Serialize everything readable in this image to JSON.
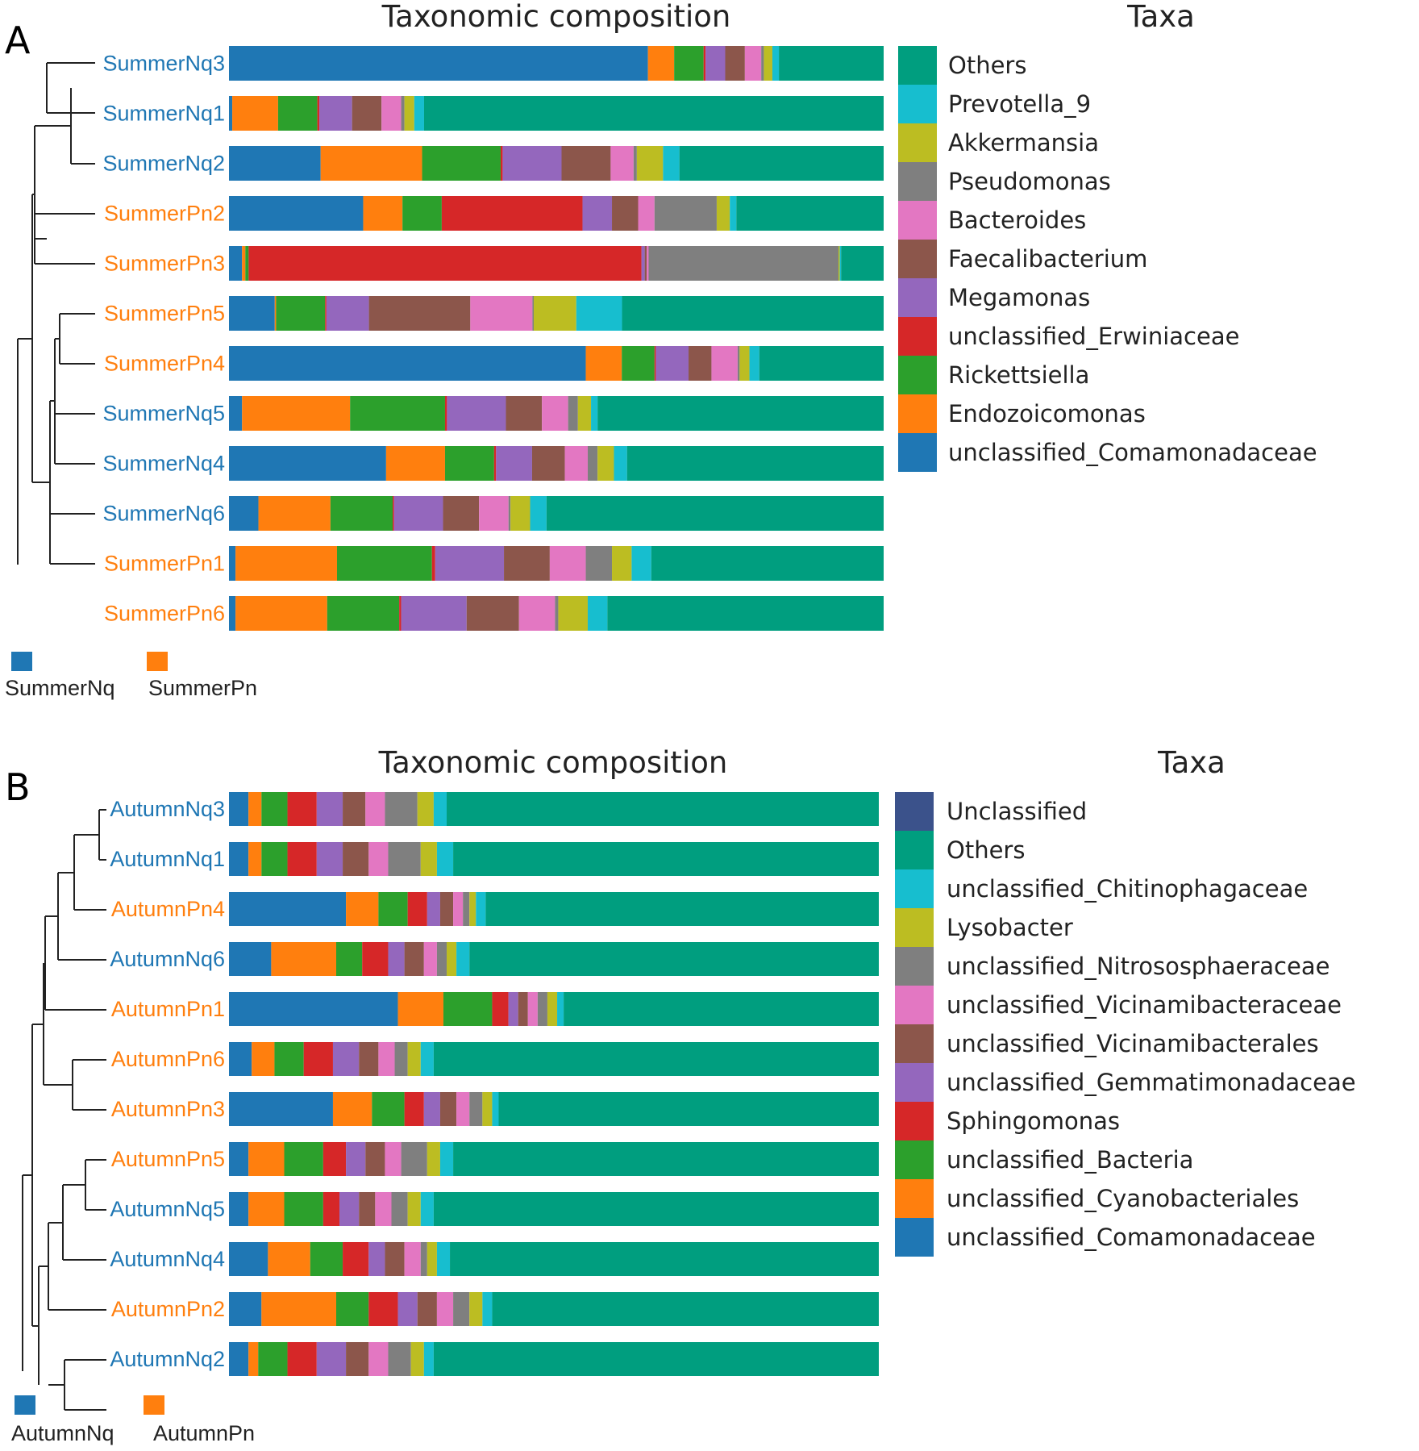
{
  "colors": {
    "Nq": "#1f77b4",
    "Pn": "#ff7f0e",
    "blue": "#1f77b4",
    "orange": "#ff7f0e",
    "green": "#2ca02c",
    "red": "#d62728",
    "purple": "#9467bd",
    "brown": "#8c564b",
    "pink": "#e377c2",
    "gray": "#7f7f7f",
    "olive": "#bcbd22",
    "cyan": "#17becf",
    "teal": "#009e7f",
    "navy": "#3b528b"
  },
  "chart_data": [
    {
      "panel": "A",
      "type": "bar",
      "orientation": "horizontal-stacked",
      "title": "Taxonomic composition",
      "legend_title": "Taxa",
      "xlim": [
        0,
        100
      ],
      "legend": [
        "Others",
        "Prevotella_9",
        "Akkermansia",
        "Pseudomonas",
        "Bacteroides",
        "Faecalibacterium",
        "Megamonas",
        "unclassified_Erwiniaceae",
        "Rickettsiella",
        "Endozoicomonas",
        "unclassified_Comamonadaceae"
      ],
      "legend_colors": [
        "teal",
        "cyan",
        "olive",
        "gray",
        "pink",
        "brown",
        "purple",
        "red",
        "green",
        "orange",
        "blue"
      ],
      "stack_order": [
        "unclassified_Comamonadaceae",
        "Endozoicomonas",
        "Rickettsiella",
        "unclassified_Erwiniaceae",
        "Megamonas",
        "Faecalibacterium",
        "Bacteroides",
        "Pseudomonas",
        "Akkermansia",
        "Prevotella_9",
        "Others"
      ],
      "stack_colors": [
        "blue",
        "orange",
        "green",
        "red",
        "purple",
        "brown",
        "pink",
        "gray",
        "olive",
        "cyan",
        "teal"
      ],
      "samples": [
        {
          "name": "SummerNq3",
          "group": "Nq",
          "values": [
            64,
            4,
            4.5,
            0.3,
            3,
            3,
            2.5,
            0.4,
            1.3,
            1,
            16
          ]
        },
        {
          "name": "SummerNq1",
          "group": "Nq",
          "values": [
            0.5,
            7,
            6,
            0.3,
            5,
            4.5,
            3,
            0.5,
            1.5,
            1.5,
            70.2
          ]
        },
        {
          "name": "SummerNq2",
          "group": "Nq",
          "values": [
            14,
            15.5,
            12,
            0.3,
            9,
            7.5,
            3.5,
            0.5,
            4,
            2.5,
            31.2
          ]
        },
        {
          "name": "SummerPn2",
          "group": "Pn",
          "values": [
            20.5,
            6,
            6,
            21.5,
            4.5,
            4,
            2.5,
            9.5,
            2,
            1,
            22.5
          ]
        },
        {
          "name": "SummerPn3",
          "group": "Pn",
          "values": [
            2,
            0.5,
            0.5,
            60,
            0.5,
            0.3,
            0.3,
            29,
            0.2,
            0.2,
            6.5
          ]
        },
        {
          "name": "SummerPn5",
          "group": "Pn",
          "values": [
            7,
            0.2,
            7.5,
            0.2,
            6.5,
            15.5,
            9.5,
            0.2,
            6.5,
            7,
            40
          ]
        },
        {
          "name": "SummerPn4",
          "group": "Pn",
          "values": [
            54.5,
            5.5,
            5,
            0.2,
            5,
            3.5,
            4,
            0.3,
            1.5,
            1.5,
            19
          ]
        },
        {
          "name": "SummerNq5",
          "group": "Nq",
          "values": [
            2,
            16.5,
            14.5,
            0.3,
            9,
            5.5,
            4,
            1.5,
            2,
            1,
            43.7
          ]
        },
        {
          "name": "SummerNq4",
          "group": "Nq",
          "values": [
            24,
            9,
            7.5,
            0.3,
            5.5,
            5,
            3.5,
            1.5,
            2.5,
            2,
            39.2
          ]
        },
        {
          "name": "SummerNq6",
          "group": "Nq",
          "values": [
            4.5,
            11,
            9.5,
            0.2,
            7.5,
            5.5,
            4.5,
            0.3,
            3,
            2.5,
            51.5
          ]
        },
        {
          "name": "SummerPn1",
          "group": "Pn",
          "values": [
            1,
            15.5,
            14.5,
            0.5,
            10.5,
            7,
            5.5,
            4,
            3,
            3,
            35.5
          ]
        },
        {
          "name": "SummerPn6",
          "group": "Pn",
          "values": [
            1,
            14,
            11,
            0.3,
            10,
            8,
            5.5,
            0.5,
            4.5,
            3,
            42.2
          ]
        }
      ],
      "groups": [
        "SummerNq",
        "SummerPn"
      ]
    },
    {
      "panel": "B",
      "type": "bar",
      "orientation": "horizontal-stacked",
      "title": "Taxonomic composition",
      "legend_title": "Taxa",
      "xlim": [
        0,
        100
      ],
      "legend": [
        "Unclassified",
        "Others",
        "unclassified_Chitinophagaceae",
        "Lysobacter",
        "unclassified_Nitrososphaeraceae",
        "unclassified_Vicinamibacteraceae",
        "unclassified_Vicinamibacterales",
        "unclassified_Gemmatimonadaceae",
        "Sphingomonas",
        "unclassified_Bacteria",
        "unclassified_Cyanobacteriales",
        "unclassified_Comamonadaceae"
      ],
      "legend_colors": [
        "navy",
        "teal",
        "cyan",
        "olive",
        "gray",
        "pink",
        "brown",
        "purple",
        "red",
        "green",
        "orange",
        "blue"
      ],
      "stack_order": [
        "unclassified_Comamonadaceae",
        "unclassified_Cyanobacteriales",
        "unclassified_Bacteria",
        "Sphingomonas",
        "unclassified_Gemmatimonadaceae",
        "unclassified_Vicinamibacterales",
        "unclassified_Vicinamibacteraceae",
        "unclassified_Nitrososphaeraceae",
        "Lysobacter",
        "unclassified_Chitinophagaceae",
        "Others"
      ],
      "stack_colors": [
        "blue",
        "orange",
        "green",
        "red",
        "purple",
        "brown",
        "pink",
        "gray",
        "olive",
        "cyan",
        "teal"
      ],
      "samples": [
        {
          "name": "AutumnNq3",
          "group": "Nq",
          "values": [
            3,
            2,
            4,
            4.5,
            4,
            3.5,
            3,
            5,
            2.5,
            2,
            66.5
          ]
        },
        {
          "name": "AutumnNq1",
          "group": "Nq",
          "values": [
            3,
            2,
            4,
            4.5,
            4,
            4,
            3,
            5,
            2.5,
            2.5,
            65.5
          ]
        },
        {
          "name": "AutumnPn4",
          "group": "Pn",
          "values": [
            18,
            5,
            4.5,
            3,
            2,
            2,
            1.5,
            1,
            1,
            1.5,
            60.5
          ]
        },
        {
          "name": "AutumnNq6",
          "group": "Nq",
          "values": [
            6.5,
            10,
            4,
            4,
            2.5,
            3,
            2,
            1.5,
            1.5,
            2,
            63
          ]
        },
        {
          "name": "AutumnPn1",
          "group": "Pn",
          "values": [
            26,
            7,
            7.5,
            2.5,
            1.5,
            1.5,
            1.5,
            1.5,
            1.5,
            1,
            48.5
          ]
        },
        {
          "name": "AutumnPn6",
          "group": "Pn",
          "values": [
            3.5,
            3.5,
            4.5,
            4.5,
            4,
            3,
            2.5,
            2,
            2,
            2,
            68.5
          ]
        },
        {
          "name": "AutumnPn3",
          "group": "Pn",
          "values": [
            16,
            6,
            5,
            3,
            2.5,
            2.5,
            2,
            2,
            1.5,
            1,
            58.5
          ]
        },
        {
          "name": "AutumnPn5",
          "group": "Pn",
          "values": [
            3,
            5.5,
            6,
            3.5,
            3,
            3,
            2.5,
            4,
            2,
            2,
            65.5
          ]
        },
        {
          "name": "AutumnNq5",
          "group": "Nq",
          "values": [
            3,
            5.5,
            6,
            2.5,
            3,
            2.5,
            2.5,
            2.5,
            2,
            2,
            68.5
          ]
        },
        {
          "name": "AutumnNq4",
          "group": "Nq",
          "values": [
            6,
            6.5,
            5,
            4,
            2.5,
            3,
            2.5,
            1,
            1.5,
            2,
            66
          ]
        },
        {
          "name": "AutumnPn2",
          "group": "Pn",
          "values": [
            5,
            11.5,
            5,
            4.5,
            3,
            3,
            2.5,
            2.5,
            2,
            1.5,
            59.5
          ]
        },
        {
          "name": "AutumnNq2",
          "group": "Nq",
          "values": [
            3,
            1.5,
            4.5,
            4.5,
            4.5,
            3.5,
            3,
            3.5,
            2,
            1.5,
            68.5
          ]
        }
      ],
      "groups": [
        "AutumnNq",
        "AutumnPn"
      ]
    }
  ]
}
